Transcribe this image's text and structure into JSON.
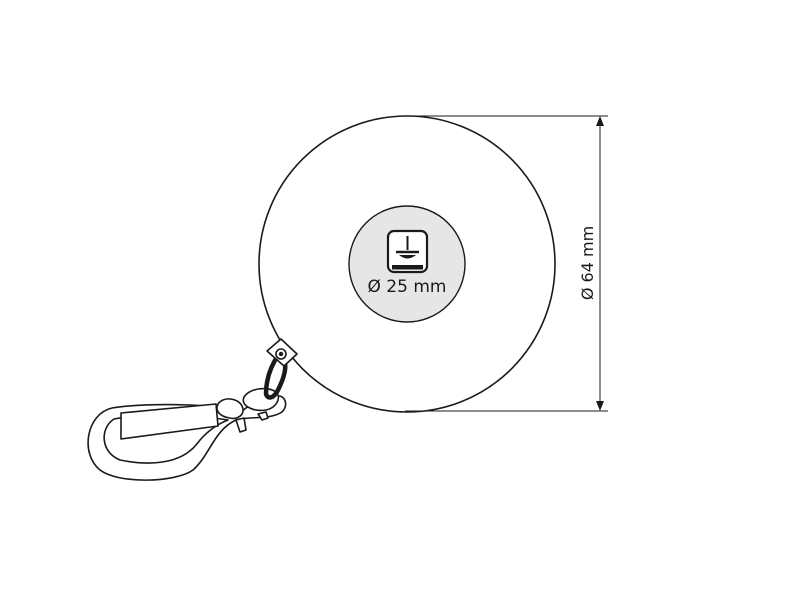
{
  "labels": {
    "inner_diameter": "Ø 25 mm",
    "outer_diameter": "Ø 64 mm"
  },
  "icons": {
    "print_area": "print-area-icon"
  },
  "colors": {
    "stroke": "#1a1a1a",
    "inner_fill": "#e6e6e6",
    "background": "#ffffff"
  }
}
